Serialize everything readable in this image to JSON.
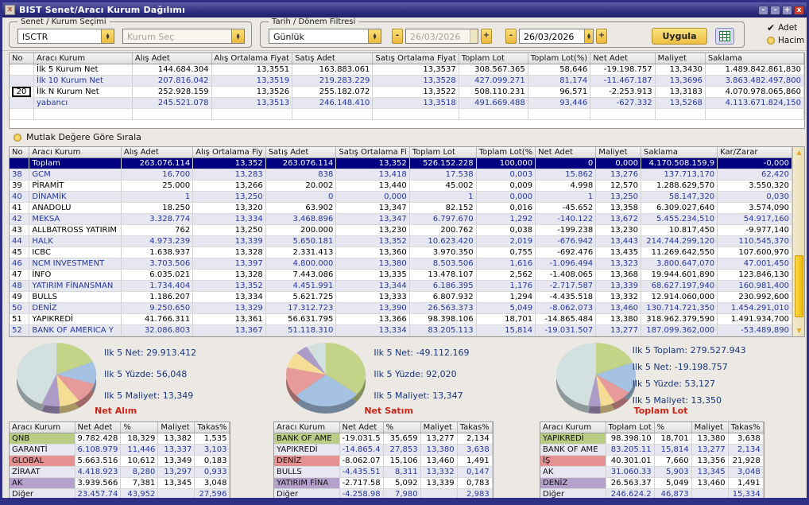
{
  "window": {
    "title": "BIST Senet/Aracı Kurum Dağılımı"
  },
  "filters": {
    "group1_label": "Senet / Kurum Seçimi",
    "symbol_value": "ISCTR",
    "kurum_placeholder": "Kurum Seç",
    "group2_label": "Tarih / Dönem Filtresi",
    "period_value": "Günlük",
    "date_from": "26/03/2026",
    "date_to": "26/03/2026",
    "apply_label": "Uygula",
    "radio_adet_label": "Adet",
    "radio_hacim_label": "Hacim"
  },
  "summary_table": {
    "headers": [
      "No",
      "Aracı Kurum",
      "Alış Adet",
      "Alış Ortalama Fiyat",
      "Satış Adet",
      "Satış Ortalama Fiyat",
      "Toplam Lot",
      "Toplam Lot(%)",
      "Net Adet",
      "Maliyet",
      "Saklama"
    ],
    "n_value": "20",
    "rows": [
      [
        "",
        "İlk 5 Kurum Net",
        "144.684.304",
        "13,3551",
        "163.883.061",
        "13,3537",
        "308.567.365",
        "58,646",
        "-19.198.757",
        "13,3430",
        "1.489.842.861,830"
      ],
      [
        "",
        "İlk 10 Kurum Net",
        "207.816.042",
        "13,3519",
        "219.283.229",
        "13,3528",
        "427.099.271",
        "81,174",
        "-11.467.187",
        "13,3696",
        "3.863.482.497,800"
      ],
      [
        "20",
        "İlk N Kurum Net",
        "252.928.159",
        "13,3526",
        "255.182.072",
        "13,3522",
        "508.110.231",
        "96,571",
        "-2.253.913",
        "13,3183",
        "4.070.978.065,860"
      ],
      [
        "",
        "yabancı",
        "245.521.078",
        "13,3513",
        "246.148.410",
        "13,3518",
        "491.669.488",
        "93,446",
        "-627.332",
        "13,5268",
        "4.113.671.824,150"
      ]
    ]
  },
  "sort_label": "Mutlak Değere Göre Sırala",
  "main_table": {
    "headers": [
      "No",
      "Aracı Kurum",
      "Alış Adet",
      "Alış Ortalama Fiy",
      "Satış Adet",
      "Satış Ortalama Fi",
      "Toplam Lot",
      "Toplam Lot(%",
      "Net Adet",
      "Maliyet",
      "Saklama",
      "Kar/Zarar"
    ],
    "rows": [
      [
        "",
        "Toplam",
        "263.076.114",
        "13,352",
        "263.076.114",
        "13,352",
        "526.152.228",
        "100,000",
        "0",
        "0,000",
        "4.170.508.159,9",
        "-0,000"
      ],
      [
        "38",
        "GCM",
        "16.700",
        "13,283",
        "838",
        "13,418",
        "17.538",
        "0,003",
        "15.862",
        "13,276",
        "137.713,170",
        "62,420"
      ],
      [
        "39",
        "PİRAMİT",
        "25.000",
        "13,266",
        "20.002",
        "13,440",
        "45.002",
        "0,009",
        "4.998",
        "12,570",
        "1.288.629,570",
        "3.550,320"
      ],
      [
        "40",
        "DİNAMİK",
        "1",
        "13,250",
        "0",
        "0,000",
        "1",
        "0,000",
        "1",
        "13,250",
        "58.147,320",
        "0,030"
      ],
      [
        "41",
        "ANADOLU",
        "18.250",
        "13,320",
        "63.902",
        "13,347",
        "82.152",
        "0,016",
        "-45.652",
        "13,358",
        "6.309.027,640",
        "3.574,090"
      ],
      [
        "42",
        "MEKSA",
        "3.328.774",
        "13,334",
        "3.468.896",
        "13,347",
        "6.797.670",
        "1,292",
        "-140.122",
        "13,672",
        "5.455.234,510",
        "54.917,160"
      ],
      [
        "43",
        "ALLBATROSS YATIRIM",
        "762",
        "13,250",
        "200.000",
        "13,230",
        "200.762",
        "0,038",
        "-199.238",
        "13,230",
        "10.817,450",
        "-9.977,140"
      ],
      [
        "44",
        "HALK",
        "4.973.239",
        "13,339",
        "5.650.181",
        "13,352",
        "10.623.420",
        "2,019",
        "-676.942",
        "13,443",
        "214.744.299,120",
        "110.545,370"
      ],
      [
        "45",
        "ICBC",
        "1.638.937",
        "13,328",
        "2.331.413",
        "13,360",
        "3.970.350",
        "0,755",
        "-692.476",
        "13,435",
        "11.269.642,550",
        "107.600,970"
      ],
      [
        "46",
        "NCM INVESTMENT",
        "3.703.506",
        "13,397",
        "4.800.000",
        "13,380",
        "8.503.506",
        "1,616",
        "-1.096.494",
        "13,323",
        "3.800.647,070",
        "47.001,450"
      ],
      [
        "47",
        "İNFO",
        "6.035.021",
        "13,328",
        "7.443.086",
        "13,335",
        "13.478.107",
        "2,562",
        "-1.408.065",
        "13,368",
        "19.944.601,890",
        "123.846,130"
      ],
      [
        "48",
        "YATIRIM FİNANSMAN",
        "1.734.404",
        "13,352",
        "4.451.991",
        "13,344",
        "6.186.395",
        "1,176",
        "-2.717.587",
        "13,339",
        "68.627.197,940",
        "160.981,400"
      ],
      [
        "49",
        "BULLS",
        "1.186.207",
        "13,334",
        "5.621.725",
        "13,333",
        "6.807.932",
        "1,294",
        "-4.435.518",
        "13,332",
        "12.914.060,000",
        "230.992,600"
      ],
      [
        "50",
        "DENİZ",
        "9.250.650",
        "13,329",
        "17.312.723",
        "13,390",
        "26.563.373",
        "5,049",
        "-8.062.073",
        "13,460",
        "130.714.721,350",
        "1.454.291,010"
      ],
      [
        "51",
        "YAPIKREDİ",
        "41.766.311",
        "13,361",
        "56.631.795",
        "13,366",
        "98.398.106",
        "18,701",
        "-14.865.484",
        "13,380",
        "318.962.379,590",
        "1.491.934,700"
      ],
      [
        "52",
        "BANK OF AMERICA Y",
        "32.086.803",
        "13,367",
        "51.118.310",
        "13,334",
        "83.205.113",
        "15,814",
        "-19.031.507",
        "13,277",
        "187.099.362,000",
        "-53.489,890"
      ]
    ]
  },
  "panels": [
    {
      "caption": "Net Alım",
      "stats": [
        "Ilk 5 Net: 29.913.412",
        "Ilk 5 Yüzde: 56,048",
        "Ilk 5 Maliyet: 13,349"
      ],
      "table": {
        "headers": [
          "Aracı Kurum",
          "Net Adet",
          "%",
          "Maliyet",
          "Takas%"
        ],
        "rows": [
          [
            "QNB",
            "9.782.428",
            "18,329",
            "13,382",
            "1,535"
          ],
          [
            "GARANTİ",
            "6.108.979",
            "11,446",
            "13,337",
            "3,103"
          ],
          [
            "GLOBAL",
            "5.663.516",
            "10,612",
            "13,349",
            "0,183"
          ],
          [
            "ZİRAAT",
            "4.418.923",
            "8,280",
            "13,297",
            "0,933"
          ],
          [
            "AK",
            "3.939.566",
            "7,381",
            "13,345",
            "3,048"
          ],
          [
            "Diğer",
            "23.457.74",
            "43,952",
            "",
            "27,596"
          ]
        ]
      }
    },
    {
      "caption": "Net Satım",
      "stats": [
        "Ilk 5 Net: -49.112.169",
        "Ilk 5 Yüzde: 92,020",
        "Ilk 5 Maliyet: 13,347"
      ],
      "table": {
        "headers": [
          "Aracı Kurum",
          "Net Adet",
          "%",
          "Maliyet",
          "Takas%"
        ],
        "rows": [
          [
            "BANK OF AME",
            "-19.031.5",
            "35,659",
            "13,277",
            "2,134"
          ],
          [
            "YAPIKREDİ",
            "-14.865.4",
            "27,853",
            "13,380",
            "3,638"
          ],
          [
            "DENİZ",
            "-8.062.07",
            "15,106",
            "13,460",
            "1,491"
          ],
          [
            "BULLS",
            "-4.435.51",
            "8,311",
            "13,332",
            "0,147"
          ],
          [
            "YATIRIM FİNA",
            "-2.717.58",
            "5,092",
            "13,339",
            "0,783"
          ],
          [
            "Diğer",
            "-4.258.98",
            "7,980",
            "",
            "2,983"
          ]
        ]
      }
    },
    {
      "caption": "Toplam Lot",
      "stats": [
        "Ilk 5 Toplam: 279.527.943",
        "Ilk 5 Net: -19.198.757",
        "Ilk 5 Yüzde: 53,127",
        "Ilk 5 Maliyet: 13,350"
      ],
      "table": {
        "headers": [
          "Aracı Kurum",
          "Toplam Lot",
          "%",
          "Maliyet",
          "Takas%"
        ],
        "rows": [
          [
            "YAPIKREDİ",
            "98.398.10",
            "18,701",
            "13,380",
            "3,638"
          ],
          [
            "BANK OF AME",
            "83.205.11",
            "15,814",
            "13,277",
            "2,134"
          ],
          [
            "İŞ",
            "40.301.01",
            "7,660",
            "13,356",
            "21,928"
          ],
          [
            "AK",
            "31.060.33",
            "5,903",
            "13,345",
            "3,048"
          ],
          [
            "DENİZ",
            "26.563.37",
            "5,049",
            "13,460",
            "1,491"
          ],
          [
            "Diğer",
            "246.624.2",
            "46,873",
            "",
            "15,334"
          ]
        ]
      }
    }
  ],
  "chart_data": [
    {
      "type": "pie",
      "title": "Net Alım",
      "labels": [
        "QNB",
        "GARANTİ",
        "GLOBAL",
        "ZİRAAT",
        "AK",
        "Diğer"
      ],
      "values": [
        18.329,
        11.446,
        10.612,
        8.28,
        7.381,
        43.952
      ],
      "colors": [
        "#c3d489",
        "#a6c2e3",
        "#e79a9a",
        "#f6dd96",
        "#ae9cc8",
        "#d2e0e0"
      ]
    },
    {
      "type": "pie",
      "title": "Net Satım",
      "labels": [
        "BANK OF AME",
        "YAPIKREDİ",
        "DENİZ",
        "BULLS",
        "YATIRIM FİNA",
        "Diğer"
      ],
      "values": [
        35.659,
        27.853,
        15.106,
        8.311,
        5.092,
        7.98
      ],
      "colors": [
        "#c3d489",
        "#a6c2e3",
        "#e79a9a",
        "#f6dd96",
        "#ae9cc8",
        "#d2e0e0"
      ]
    },
    {
      "type": "pie",
      "title": "Toplam Lot",
      "labels": [
        "YAPIKREDİ",
        "BANK OF AME",
        "İŞ",
        "AK",
        "DENİZ",
        "Diğer"
      ],
      "values": [
        18.701,
        15.814,
        7.66,
        5.903,
        5.049,
        46.873
      ],
      "colors": [
        "#c3d489",
        "#a6c2e3",
        "#e79a9a",
        "#f6dd96",
        "#ae9cc8",
        "#d2e0e0"
      ]
    }
  ],
  "colors": {
    "accent_yellow": "#f0c83c",
    "selected_row": "#000080",
    "caption_red": "#cc2418",
    "stat_navy": "#17357e"
  }
}
